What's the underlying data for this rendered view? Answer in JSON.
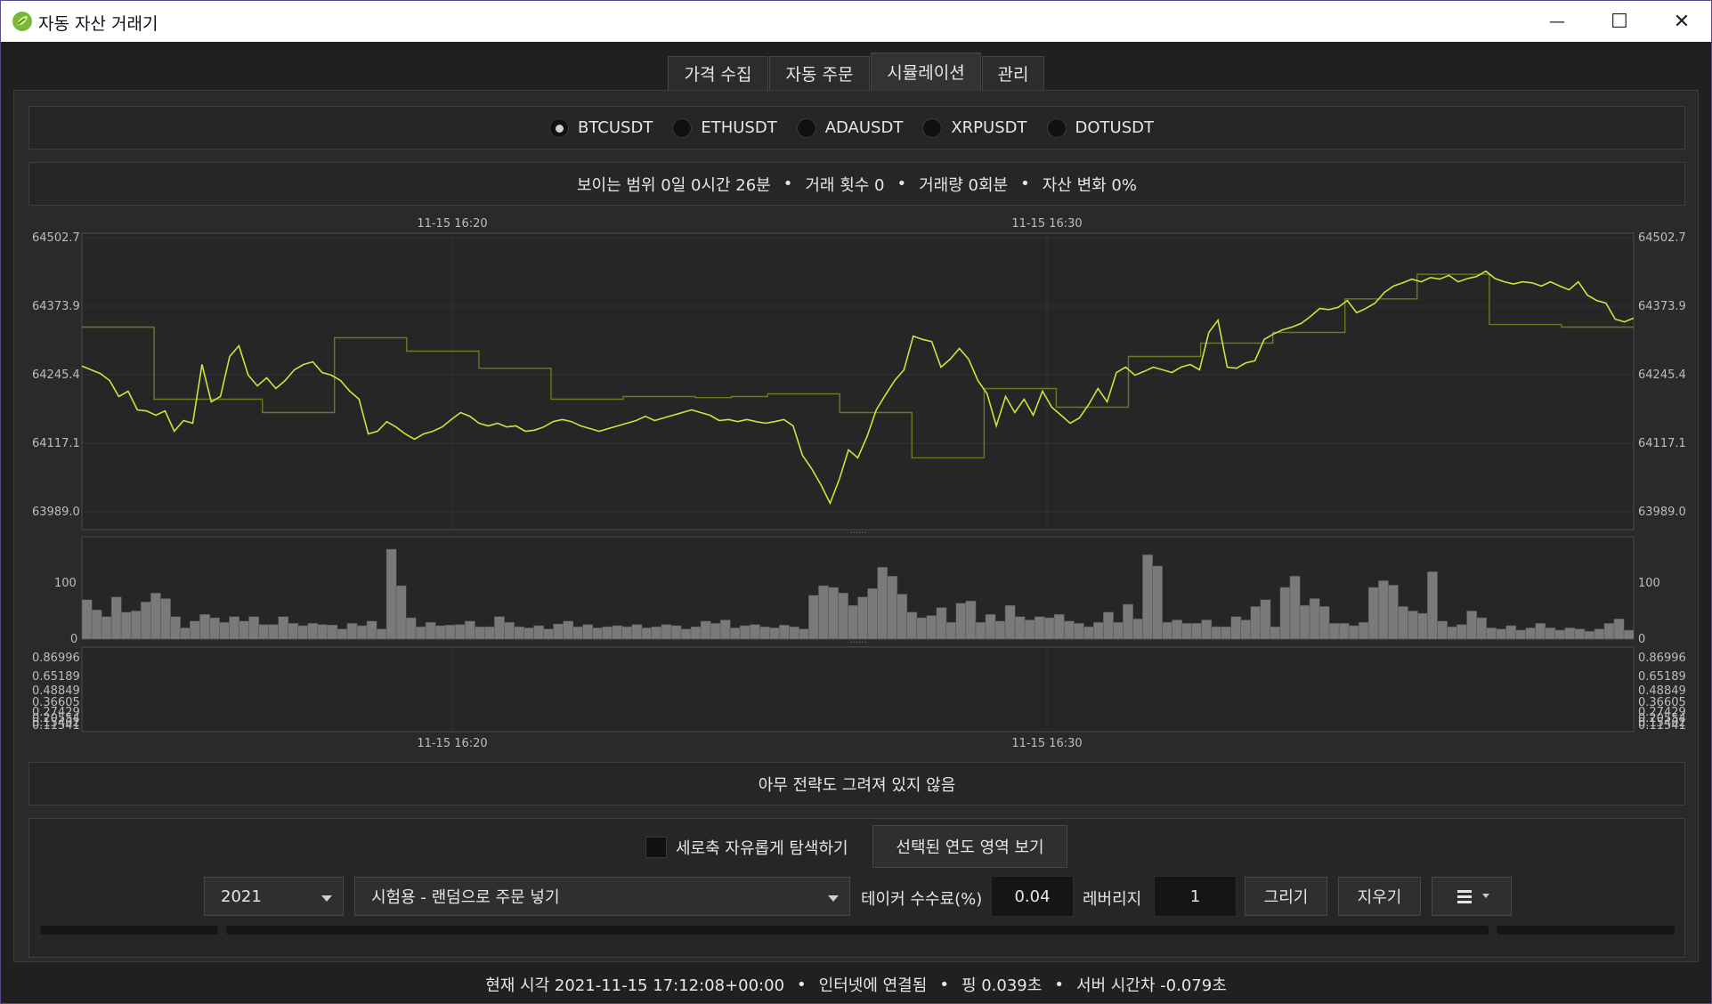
{
  "window": {
    "title": "자동 자산 거래기",
    "minimize_glyph": "—",
    "maximize_glyph": "☐",
    "close_glyph": "✕",
    "icon": "leaf-logo-icon"
  },
  "tabs": [
    {
      "label": "가격 수집",
      "active": false
    },
    {
      "label": "자동 주문",
      "active": false
    },
    {
      "label": "시뮬레이션",
      "active": true
    },
    {
      "label": "관리",
      "active": false
    }
  ],
  "symbols": [
    {
      "label": "BTCUSDT",
      "selected": true
    },
    {
      "label": "ETHUSDT",
      "selected": false
    },
    {
      "label": "ADAUSDT",
      "selected": false
    },
    {
      "label": "XRPUSDT",
      "selected": false
    },
    {
      "label": "DOTUSDT",
      "selected": false
    }
  ],
  "summary": {
    "visible_range": "보이는 범위 0일 0시간 26분",
    "trade_count": "거래 횟수 0",
    "volume": "거래량 0회분",
    "asset_change": "자산 변화 0%",
    "separator": "•"
  },
  "chart_data": [
    {
      "type": "line",
      "title": "",
      "x_ticks": [
        "11-15 16:20",
        "11-15 16:30"
      ],
      "y_ticks": [
        "64502.7",
        "64373.9",
        "64245.4",
        "64117.1",
        "63989.0"
      ],
      "ylim": [
        63989.0,
        64502.7
      ],
      "grid": true,
      "series": [
        {
          "color": "#c8e63c",
          "values": [
            64262,
            64255,
            64248,
            64235,
            64205,
            64215,
            64180,
            64178,
            64170,
            64178,
            64140,
            64160,
            64155,
            64265,
            64195,
            64205,
            64280,
            64300,
            64245,
            64225,
            64240,
            64220,
            64235,
            64255,
            64265,
            64270,
            64250,
            64245,
            64235,
            64215,
            64200,
            64135,
            64140,
            64158,
            64148,
            64135,
            64125,
            64135,
            64140,
            64148,
            64162,
            64175,
            64168,
            64155,
            64150,
            64155,
            64148,
            64150,
            64140,
            64142,
            64148,
            64158,
            64162,
            64158,
            64150,
            64145,
            64140,
            64145,
            64150,
            64155,
            64160,
            64168,
            64160,
            64165,
            64170,
            64175,
            64180,
            64175,
            64170,
            64160,
            64162,
            64158,
            64162,
            64158,
            64155,
            64158,
            64162,
            64150,
            64095,
            64070,
            64040,
            64005,
            64050,
            64105,
            64090,
            64130,
            64180,
            64208,
            64235,
            64255,
            64318,
            64312,
            64308,
            64260,
            64275,
            64295,
            64275,
            64235,
            64210,
            64150,
            64205,
            64175,
            64200,
            64170,
            64215,
            64185,
            64170,
            64155,
            64165,
            64190,
            64220,
            64195,
            64250,
            64260,
            64245,
            64252,
            64260,
            64255,
            64250,
            64260,
            64265,
            64255,
            64325,
            64348,
            64260,
            64258,
            64268,
            64272,
            64312,
            64322,
            64330,
            64335,
            64342,
            64355,
            64370,
            64368,
            64372,
            64385,
            64362,
            64370,
            64380,
            64400,
            64412,
            64418,
            64425,
            64420,
            64428,
            64425,
            64432,
            64420,
            64426,
            64430,
            64440,
            64426,
            64420,
            64416,
            64420,
            64418,
            64412,
            64420,
            64412,
            64405,
            64420,
            64395,
            64385,
            64380,
            64350,
            64345,
            64352
          ]
        },
        {
          "color": "#6b7a1e",
          "values": [
            64335,
            64335,
            64200,
            64200,
            64200,
            64175,
            64175,
            64315,
            64315,
            64290,
            64290,
            64258,
            64258,
            64200,
            64200,
            64205,
            64205,
            64203,
            64205,
            64210,
            64210,
            64175,
            64175,
            64090,
            64090,
            64220,
            64220,
            64185,
            64185,
            64280,
            64280,
            64305,
            64305,
            64325,
            64325,
            64388,
            64388,
            64434,
            64434,
            64340,
            64340,
            64335,
            64335
          ]
        }
      ]
    },
    {
      "type": "bar",
      "title": "",
      "y_ticks": [
        "100",
        "0"
      ],
      "ylim": [
        0,
        160
      ],
      "color": "#7a7a7a",
      "values": [
        70,
        52,
        40,
        75,
        48,
        50,
        66,
        82,
        72,
        40,
        20,
        32,
        44,
        38,
        30,
        40,
        32,
        40,
        26,
        26,
        40,
        28,
        24,
        28,
        26,
        25,
        18,
        28,
        24,
        32,
        18,
        160,
        95,
        38,
        22,
        30,
        24,
        25,
        26,
        32,
        22,
        22,
        40,
        30,
        22,
        20,
        24,
        18,
        27,
        32,
        22,
        26,
        20,
        22,
        24,
        22,
        26,
        20,
        22,
        26,
        24,
        18,
        22,
        32,
        28,
        34,
        20,
        24,
        26,
        22,
        20,
        25,
        22,
        18,
        78,
        95,
        92,
        82,
        60,
        75,
        90,
        128,
        112,
        80,
        48,
        38,
        42,
        56,
        30,
        64,
        68,
        30,
        44,
        32,
        60,
        40,
        34,
        40,
        38,
        44,
        32,
        28,
        22,
        30,
        48,
        30,
        62,
        36,
        150,
        130,
        30,
        34,
        28,
        28,
        34,
        22,
        22,
        40,
        34,
        58,
        70,
        22,
        92,
        112,
        60,
        72,
        58,
        28,
        28,
        24,
        30,
        92,
        104,
        96,
        58,
        50,
        46,
        120,
        32,
        22,
        26,
        50,
        38,
        20,
        18,
        24,
        16,
        20,
        28,
        20,
        16,
        20,
        18,
        14,
        18,
        28,
        36,
        16
      ]
    },
    {
      "type": "line",
      "title": "",
      "x_ticks": [
        "11-15 16:20",
        "11-15 16:30"
      ],
      "y_ticks": [
        "0.86996",
        "0.65189",
        "0.48849",
        "0.36605",
        "0.27429",
        "0.20554",
        "0.15402",
        "0.11541"
      ],
      "grid": true,
      "series": []
    }
  ],
  "strategy_status": "아무 전략도 그려져 있지 않음",
  "controls": {
    "free_y_label": "세로축 자유롭게 탐색하기",
    "free_y_checked": false,
    "view_year_button": "선택된 연도 영역 보기",
    "year_value": "2021",
    "strategy_value": "시험용 - 랜덤으로 주문 넣기",
    "taker_fee_label": "테이커 수수료(%)",
    "taker_fee_value": "0.04",
    "leverage_label": "레버리지",
    "leverage_value": "1",
    "draw_button": "그리기",
    "clear_button": "지우기",
    "menu_icon": "hamburger-menu-icon",
    "progress": [
      0,
      0,
      0
    ]
  },
  "status_bar": {
    "current_time": "현재 시각 2021-11-15 17:12:08+00:00",
    "connection": "인터넷에 연결됨",
    "ping": "핑 0.039초",
    "server_offset": "서버 시간차 -0.079초",
    "separator": "•"
  },
  "colors": {
    "price_line": "#c8e63c",
    "candle_band": "#6b7a1e",
    "volume_bar": "#7a7a7a",
    "background": "#202020"
  }
}
